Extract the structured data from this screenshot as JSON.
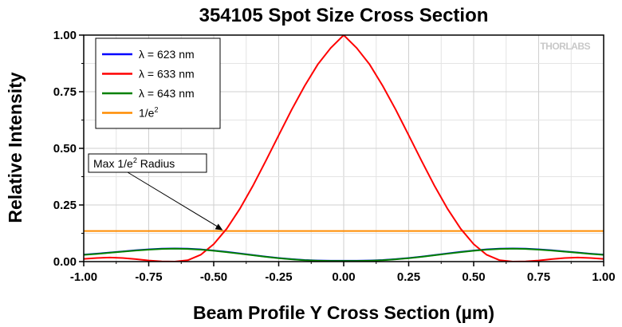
{
  "chart_data": {
    "type": "line",
    "title": "354105 Spot Size Cross Section",
    "xlabel": "Beam Profile Y Cross Section (µm)",
    "ylabel": "Relative Intensity",
    "xlim": [
      -1.0,
      1.0
    ],
    "ylim": [
      0.0,
      1.0
    ],
    "xticks": [
      -1.0,
      -0.75,
      -0.5,
      -0.25,
      0.0,
      0.25,
      0.5,
      0.75,
      1.0
    ],
    "xtick_labels": [
      "-1.00",
      "-0.75",
      "-0.50",
      "-0.25",
      "0.00",
      "0.25",
      "0.50",
      "0.75",
      "1.00"
    ],
    "yticks": [
      0.0,
      0.25,
      0.5,
      0.75,
      1.0
    ],
    "ytick_labels": [
      "0.00",
      "0.25",
      "0.50",
      "0.75",
      "1.00"
    ],
    "grid": true,
    "legend_position": "top-left",
    "brand": "THORLABS",
    "series": [
      {
        "name": "λ = 623 nm",
        "color": "#0000ff",
        "x": [
          -1.0,
          -0.95,
          -0.9,
          -0.85,
          -0.8,
          -0.75,
          -0.7,
          -0.65,
          -0.6,
          -0.55,
          -0.5,
          -0.45,
          -0.4,
          -0.35,
          -0.3,
          -0.25,
          -0.2,
          -0.15,
          -0.1,
          -0.05,
          0.0,
          0.05,
          0.1,
          0.15,
          0.2,
          0.25,
          0.3,
          0.35,
          0.4,
          0.45,
          0.5,
          0.55,
          0.6,
          0.65,
          0.7,
          0.75,
          0.8,
          0.85,
          0.9,
          0.95,
          1.0
        ],
        "y": [
          0.031,
          0.035,
          0.04,
          0.045,
          0.05,
          0.054,
          0.057,
          0.058,
          0.057,
          0.054,
          0.049,
          0.043,
          0.036,
          0.029,
          0.022,
          0.016,
          0.011,
          0.007,
          0.005,
          0.004,
          0.004,
          0.004,
          0.005,
          0.007,
          0.011,
          0.016,
          0.022,
          0.029,
          0.036,
          0.043,
          0.049,
          0.054,
          0.057,
          0.058,
          0.057,
          0.054,
          0.05,
          0.045,
          0.04,
          0.035,
          0.031
        ]
      },
      {
        "name": "λ = 633 nm",
        "color": "#ff0000",
        "x": [
          -1.0,
          -0.95,
          -0.9,
          -0.85,
          -0.8,
          -0.75,
          -0.7,
          -0.65,
          -0.6,
          -0.55,
          -0.5,
          -0.45,
          -0.4,
          -0.35,
          -0.3,
          -0.25,
          -0.2,
          -0.15,
          -0.1,
          -0.05,
          0.0,
          0.05,
          0.1,
          0.15,
          0.2,
          0.25,
          0.3,
          0.35,
          0.4,
          0.45,
          0.5,
          0.55,
          0.6,
          0.65,
          0.7,
          0.75,
          0.8,
          0.85,
          0.9,
          0.95,
          1.0
        ],
        "y": [
          0.012,
          0.016,
          0.018,
          0.016,
          0.011,
          0.005,
          0.001,
          0.0,
          0.006,
          0.03,
          0.077,
          0.145,
          0.232,
          0.333,
          0.444,
          0.558,
          0.671,
          0.776,
          0.87,
          0.943,
          1.0,
          0.943,
          0.87,
          0.776,
          0.671,
          0.558,
          0.444,
          0.333,
          0.232,
          0.145,
          0.077,
          0.03,
          0.006,
          0.0,
          0.001,
          0.005,
          0.011,
          0.016,
          0.018,
          0.016,
          0.012
        ]
      },
      {
        "name": "λ = 643 nm",
        "color": "#008000",
        "x": [
          -1.0,
          -0.95,
          -0.9,
          -0.85,
          -0.8,
          -0.75,
          -0.7,
          -0.65,
          -0.6,
          -0.55,
          -0.5,
          -0.45,
          -0.4,
          -0.35,
          -0.3,
          -0.25,
          -0.2,
          -0.15,
          -0.1,
          -0.05,
          0.0,
          0.05,
          0.1,
          0.15,
          0.2,
          0.25,
          0.3,
          0.35,
          0.4,
          0.45,
          0.5,
          0.55,
          0.6,
          0.65,
          0.7,
          0.75,
          0.8,
          0.85,
          0.9,
          0.95,
          1.0
        ],
        "y": [
          0.03,
          0.034,
          0.039,
          0.044,
          0.049,
          0.053,
          0.056,
          0.057,
          0.056,
          0.053,
          0.048,
          0.042,
          0.035,
          0.028,
          0.021,
          0.015,
          0.01,
          0.006,
          0.004,
          0.003,
          0.003,
          0.003,
          0.004,
          0.006,
          0.01,
          0.015,
          0.021,
          0.028,
          0.035,
          0.042,
          0.048,
          0.053,
          0.056,
          0.057,
          0.056,
          0.053,
          0.049,
          0.044,
          0.039,
          0.034,
          0.03
        ]
      },
      {
        "name": "1/e",
        "name_sup": "2",
        "color": "#ff8c00",
        "x": [
          -1.0,
          1.0
        ],
        "y": [
          0.135,
          0.135
        ]
      }
    ],
    "annotations": [
      {
        "text": "Max 1/e",
        "sup": "2",
        "text_after": " Radius",
        "point_x": -0.46,
        "point_y": 0.135
      }
    ]
  }
}
